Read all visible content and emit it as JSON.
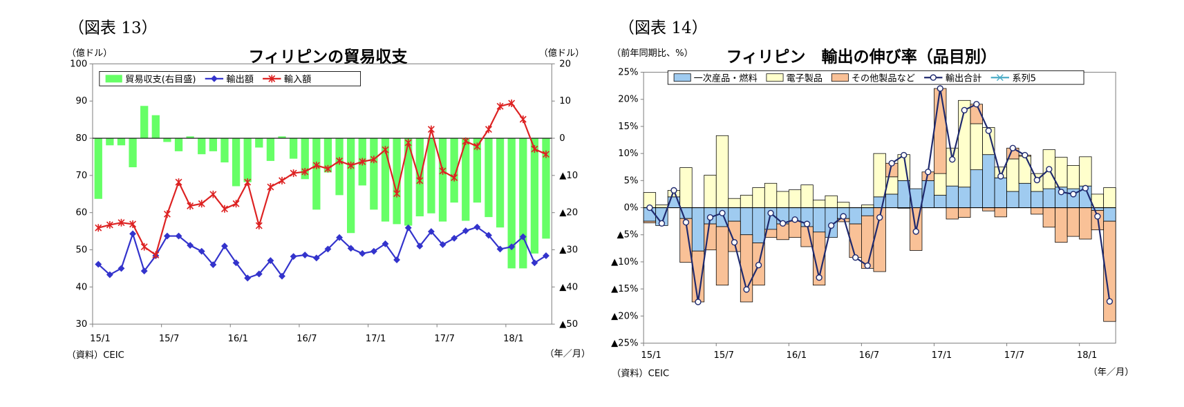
{
  "chart_data": [
    {
      "type": "combo",
      "figure_label": "（図表 13）",
      "title": "フィリピンの貿易収支",
      "y_label": "（億ドル）",
      "y2_label": "（億ドル）",
      "source": "（資料）CEIC",
      "x_label": "（年／月）",
      "categories": [
        "15/1",
        null,
        null,
        null,
        null,
        null,
        "15/7",
        null,
        null,
        null,
        null,
        null,
        "16/1",
        null,
        null,
        null,
        null,
        null,
        "16/7",
        null,
        null,
        null,
        null,
        null,
        "17/1",
        null,
        null,
        null,
        null,
        null,
        "17/7",
        null,
        null,
        null,
        null,
        null,
        "18/1",
        null,
        null,
        null
      ],
      "ylim": [
        30,
        100
      ],
      "yticks": [
        30,
        40,
        50,
        60,
        70,
        80,
        90,
        100
      ],
      "y2lim": [
        -50,
        20
      ],
      "y2ticks": [
        {
          "value": -50,
          "label": "▲50"
        },
        {
          "value": -40,
          "label": "▲40"
        },
        {
          "value": -30,
          "label": "▲30"
        },
        {
          "value": -20,
          "label": "▲20"
        },
        {
          "value": -10,
          "label": "▲10"
        },
        0,
        10,
        20
      ],
      "grid": false,
      "stacked": false,
      "series": [
        {
          "name": "貿易収支(右目盛)",
          "type": "bar",
          "axis": "y2",
          "color": "#66ff66",
          "values": [
            -16.3,
            -1.9,
            -1.9,
            -7.8,
            8.7,
            6.2,
            -1,
            -3.5,
            0.5,
            -4.3,
            -3.5,
            -6.5,
            -12.9,
            -11.8,
            -2.5,
            -6.1,
            0.5,
            -5.5,
            -11,
            -19.2,
            -9.2,
            -15.3,
            -25.5,
            -12.7,
            -19.2,
            -22.4,
            -23.1,
            -23.5,
            -21,
            -20.2,
            -22.4,
            -17.3,
            -22.2,
            -17.3,
            -21.2,
            -24,
            -35,
            -35,
            -31,
            -27
          ]
        },
        {
          "name": "輸出額",
          "type": "line",
          "marker": "diamond",
          "color": "#3333cc",
          "values": [
            46.1,
            43.3,
            45,
            54.3,
            44.3,
            48.4,
            53.7,
            53.7,
            51.2,
            49.6,
            46,
            51,
            46.5,
            42.4,
            43.5,
            47.1,
            42.9,
            48.2,
            48.6,
            47.8,
            50.2,
            53.3,
            50.4,
            49,
            49.6,
            51.6,
            47.3,
            55.9,
            51,
            54.9,
            51.4,
            53.1,
            55.1,
            56.1,
            53.9,
            50.2,
            50.8,
            53.5,
            46.5,
            48.4
          ]
        },
        {
          "name": "輸入額",
          "type": "line",
          "marker": "cross",
          "color": "#dd2222",
          "values": [
            55.9,
            56.7,
            57.3,
            56.9,
            50.8,
            48.6,
            59.6,
            68.2,
            61.8,
            62.4,
            64.9,
            61,
            62.4,
            68.2,
            56.5,
            66.9,
            68.6,
            70.6,
            71,
            72.7,
            71.8,
            73.9,
            72.7,
            73.7,
            74.3,
            76.9,
            65.1,
            78.8,
            68.6,
            82.4,
            71.2,
            69.4,
            79.2,
            77.8,
            82.4,
            88.6,
            89.4,
            85.1,
            77.1,
            75.7
          ]
        }
      ]
    },
    {
      "type": "combo",
      "figure_label": "（図表 14）",
      "title": "フィリピン　輸出の伸び率（品目別）",
      "y_label": "（前年同期比、%）",
      "source": "（資料）CEIC",
      "x_label": "（年／月）",
      "categories": [
        "15/1",
        null,
        null,
        null,
        null,
        null,
        "15/7",
        null,
        null,
        null,
        null,
        null,
        "16/1",
        null,
        null,
        null,
        null,
        null,
        "16/7",
        null,
        null,
        null,
        null,
        null,
        "17/1",
        null,
        null,
        null,
        null,
        null,
        "17/7",
        null,
        null,
        null,
        null,
        null,
        "18/1",
        null,
        null
      ],
      "ylim": [
        -25,
        25
      ],
      "yticks": [
        {
          "value": -25,
          "label": "▲25%"
        },
        {
          "value": -20,
          "label": "▲20%"
        },
        {
          "value": -15,
          "label": "▲15%"
        },
        {
          "value": -10,
          "label": "▲10%"
        },
        {
          "value": -5,
          "label": "▲5%"
        },
        {
          "value": 0,
          "label": "0%"
        },
        {
          "value": 5,
          "label": "5%"
        },
        {
          "value": 10,
          "label": "10%"
        },
        {
          "value": 15,
          "label": "15%"
        },
        {
          "value": 20,
          "label": "20%"
        },
        {
          "value": 25,
          "label": "25%"
        }
      ],
      "grid": false,
      "stacked": true,
      "series": [
        {
          "name": "一次産品・燃料",
          "type": "bar",
          "color": "#9fcbf0",
          "values": [
            -2.5,
            -3.3,
            2,
            -2,
            -8,
            -3,
            -3.5,
            -2.5,
            -5,
            -6.5,
            -4,
            -3,
            -2.5,
            -3.5,
            -4.5,
            -5.5,
            -2,
            -3,
            -1.5,
            2,
            2.5,
            5,
            3.5,
            5,
            2.3,
            4,
            3.8,
            7,
            9.8,
            5.5,
            3,
            4.5,
            3,
            3.5,
            3.8,
            3.5,
            4,
            -0.5,
            -2.5
          ]
        },
        {
          "name": "電子製品",
          "type": "bar",
          "color": "#ffffcc",
          "values": [
            2.8,
            0.5,
            1.2,
            7.4,
            0,
            6,
            13.3,
            1.7,
            2.3,
            3.7,
            4.5,
            3,
            3.3,
            4.2,
            1.4,
            2.2,
            1,
            0,
            0.5,
            8,
            3.2,
            4.8,
            0,
            0,
            4,
            7,
            16,
            8.5,
            5,
            2,
            6,
            5,
            3.3,
            7.2,
            5.5,
            4.3,
            5.4,
            2.5,
            3.7
          ]
        },
        {
          "name": "その他製品など",
          "type": "bar",
          "color": "#f9c197",
          "values": [
            -0.3,
            0,
            0,
            -8.1,
            -9.4,
            -4.8,
            -10.8,
            -5.6,
            -12.4,
            -7.8,
            -1.5,
            -2.9,
            -3,
            -3.7,
            -9.8,
            0,
            -0.6,
            -6.2,
            -9.7,
            -11.8,
            2.5,
            -0.1,
            -7.9,
            1.6,
            15.7,
            -2.1,
            -1.8,
            3.6,
            -0.6,
            -1.7,
            2,
            0.2,
            -1.2,
            -3.6,
            -6.4,
            -5.3,
            -5.8,
            -3.6,
            -18.5
          ]
        },
        {
          "name": "輸出合計",
          "type": "line",
          "marker": "circle",
          "color": "#1f2a6e",
          "values": [
            0,
            -2.9,
            3.2,
            -2.7,
            -17.4,
            -1.8,
            -1,
            -6.4,
            -15.1,
            -10.6,
            -1,
            -2.9,
            -2.2,
            -3,
            -12.9,
            -3.3,
            -1.6,
            -9.2,
            -10.7,
            -1.8,
            8.2,
            9.7,
            -4.4,
            6.6,
            22,
            8.9,
            18,
            19.1,
            14.2,
            5.8,
            11,
            9.7,
            5.1,
            7.1,
            2.9,
            2.5,
            3.6,
            -1.6,
            -17.3
          ]
        },
        {
          "name": "系列5",
          "type": "line",
          "marker": "star",
          "color": "#4bacc6",
          "values": [
            null,
            null,
            null,
            null,
            null,
            null,
            null,
            null,
            null,
            null,
            null,
            null,
            null,
            null,
            null,
            null,
            null,
            null,
            null,
            null,
            null,
            null,
            null,
            null,
            null,
            null,
            null,
            null,
            null,
            null,
            null,
            null,
            null,
            null,
            null,
            null,
            null,
            null,
            null
          ]
        }
      ]
    }
  ]
}
